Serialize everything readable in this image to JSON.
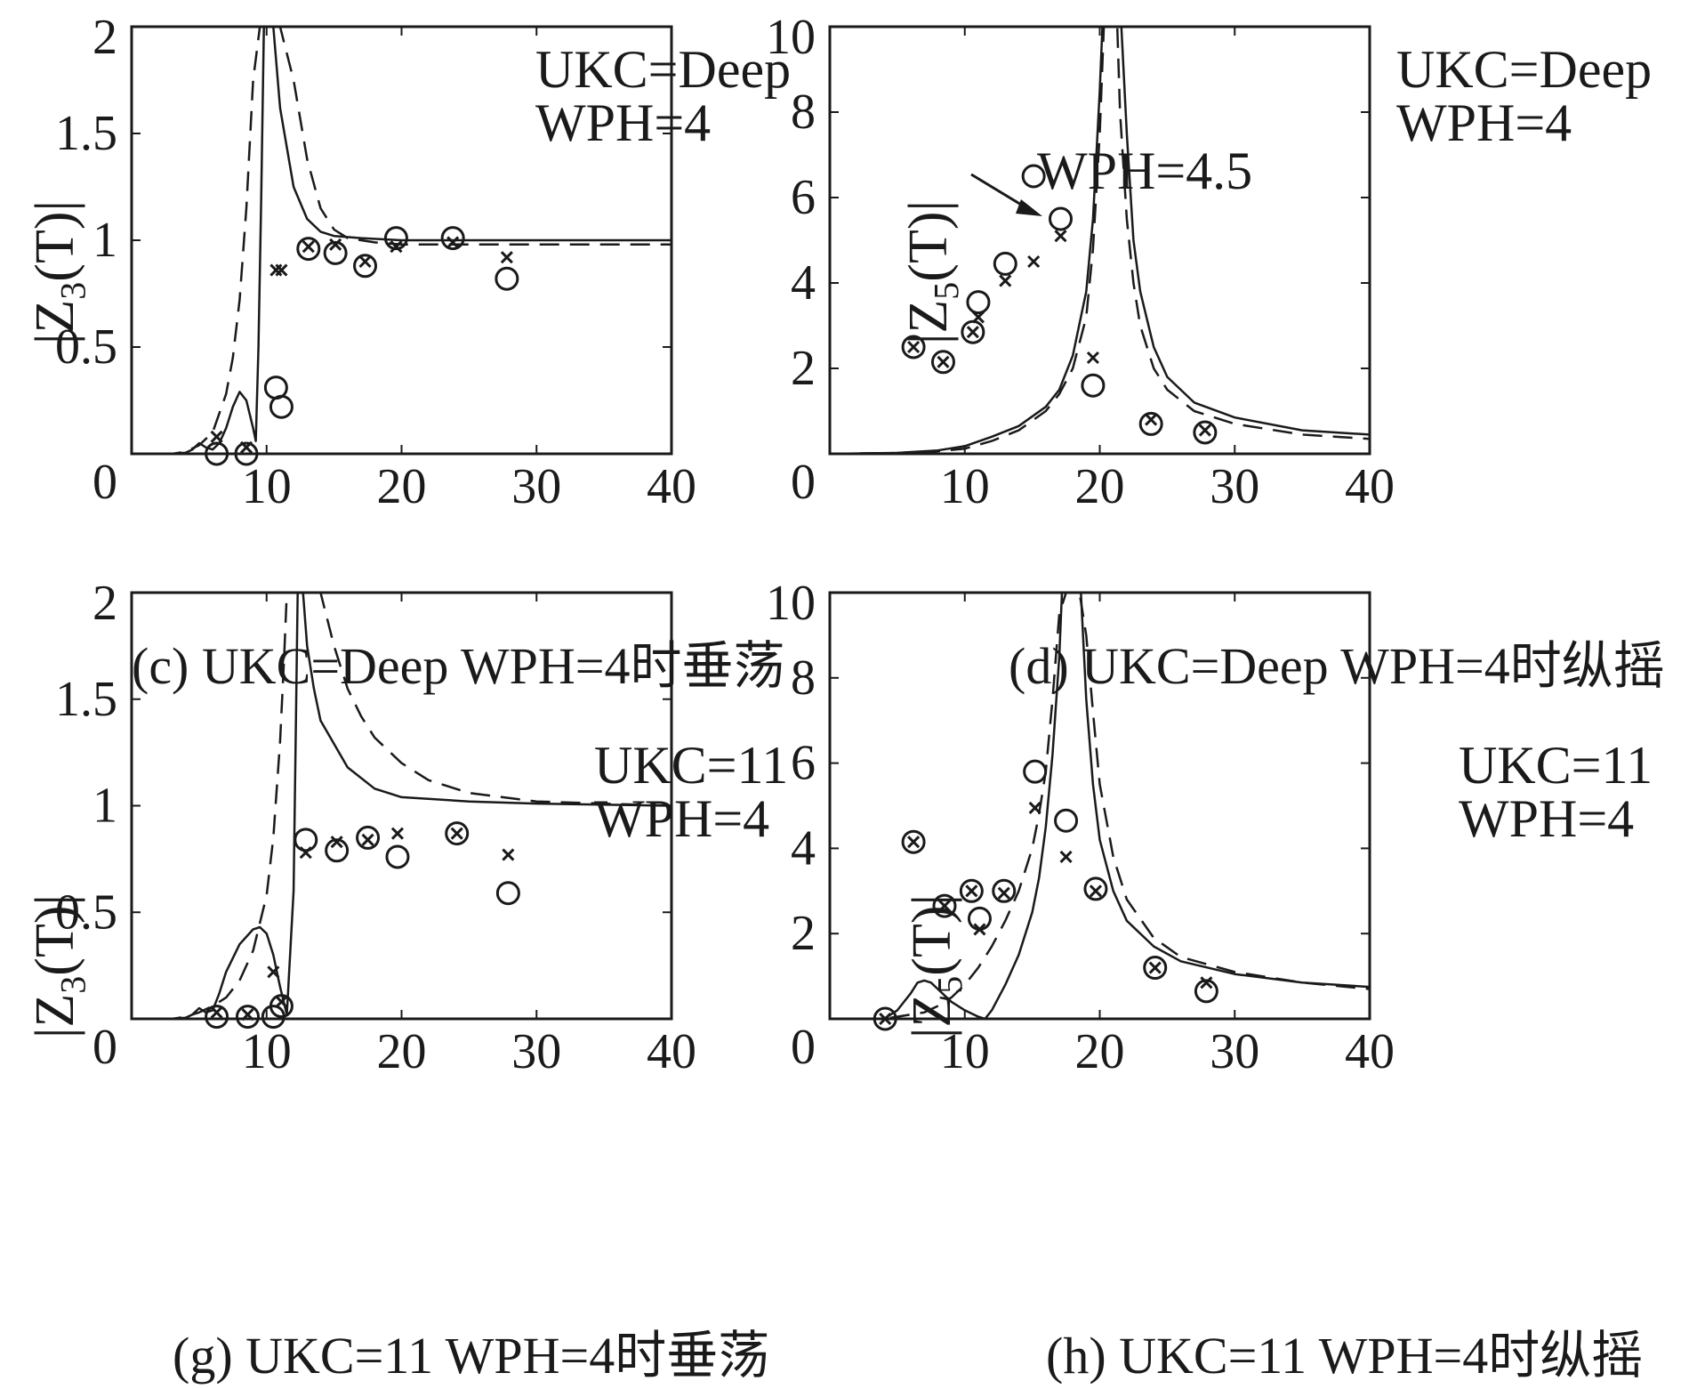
{
  "chart_data": [
    {
      "type": "line",
      "id": "c",
      "caption": "(c) UKC=Deep WPH=4时垂荡",
      "ylabel_main": "|Z",
      "ylabel_sub": "3",
      "ylabel_tail": "(T)|",
      "xlim": [
        0,
        40
      ],
      "ylim": [
        0,
        2
      ],
      "xticks": [
        0,
        10,
        20,
        30,
        40
      ],
      "yticks": [
        0,
        0.5,
        1,
        1.5,
        2
      ],
      "ytick_labels": [
        "0",
        "0.5",
        "1",
        "1.5",
        "2"
      ],
      "annotations": [
        "UKC=Deep",
        "WPH=4"
      ],
      "series": [
        {
          "style": "solid",
          "x": [
            0,
            3,
            4,
            4.5,
            5,
            5.5,
            6,
            6.5,
            7,
            7.5,
            8,
            8.5,
            9,
            9.2,
            9.4,
            9.6,
            9.8,
            10,
            10.2,
            10.5,
            11,
            12,
            13,
            14,
            15,
            17,
            20,
            25,
            30,
            40
          ],
          "y": [
            0,
            0,
            0.005,
            0.02,
            0.05,
            0.03,
            0.02,
            0.05,
            0.12,
            0.22,
            0.29,
            0.25,
            0.12,
            0.06,
            0.5,
            1.2,
            2,
            2,
            2,
            2,
            1.62,
            1.25,
            1.1,
            1.04,
            1.02,
            1.01,
            1.0,
            1.0,
            1.0,
            1.0
          ]
        },
        {
          "style": "dashed",
          "x": [
            0,
            3,
            4,
            5,
            6,
            7,
            7.5,
            8,
            8.5,
            9,
            9.5,
            10,
            10.5,
            11,
            12,
            13,
            14,
            15,
            16,
            18,
            20,
            25,
            30,
            40
          ],
          "y": [
            0,
            0,
            0.01,
            0.04,
            0.1,
            0.28,
            0.45,
            0.72,
            1.15,
            1.75,
            2,
            2,
            2,
            2,
            1.75,
            1.38,
            1.15,
            1.05,
            1.01,
            0.99,
            0.98,
            0.98,
            0.98,
            0.98
          ]
        }
      ],
      "markers_o": {
        "x": [
          6.3,
          8.5,
          10.7,
          11.1,
          13.1,
          15.1,
          17.3,
          19.6,
          23.8,
          27.8
        ],
        "y": [
          0,
          0,
          0.31,
          0.22,
          0.96,
          0.94,
          0.88,
          1.01,
          1.01,
          0.82
        ]
      },
      "markers_x": {
        "x": [
          6.3,
          8.5,
          10.7,
          11.1,
          13.1,
          15.1,
          17.3,
          19.6,
          23.8,
          27.8
        ],
        "y": [
          0.08,
          0.03,
          0.86,
          0.86,
          0.97,
          0.98,
          0.9,
          0.97,
          0.99,
          0.92
        ]
      }
    },
    {
      "type": "line",
      "id": "d",
      "caption": "(d) UKC=Deep WPH=4时纵摇",
      "ylabel_main": "|Z",
      "ylabel_sub": "5",
      "ylabel_tail": "(T)|",
      "xlim": [
        0,
        40
      ],
      "ylim": [
        0,
        10
      ],
      "xticks": [
        0,
        10,
        20,
        30,
        40
      ],
      "yticks": [
        0,
        2,
        4,
        6,
        8,
        10
      ],
      "ytick_labels": [
        "0",
        "2",
        "4",
        "6",
        "8",
        "10"
      ],
      "annotations": [
        "UKC=Deep",
        "WPH=4"
      ],
      "arrow_label": "WPH=4.5",
      "series": [
        {
          "style": "solid",
          "x": [
            0,
            5,
            8,
            10,
            12,
            14,
            16,
            17,
            18,
            19,
            19.5,
            20,
            20.2,
            20.5,
            20.8,
            21.2,
            21.6,
            22,
            22.5,
            23,
            24,
            25,
            27,
            30,
            35,
            40
          ],
          "y": [
            0,
            0.02,
            0.08,
            0.18,
            0.4,
            0.65,
            1.1,
            1.5,
            2.3,
            3.8,
            5.5,
            8.5,
            10,
            10,
            10,
            10,
            10,
            7.5,
            5,
            3.8,
            2.5,
            1.8,
            1.2,
            0.85,
            0.55,
            0.45
          ]
        },
        {
          "style": "dashed",
          "x": [
            0,
            5,
            8,
            10,
            12,
            14,
            16,
            17,
            18,
            19,
            19.5,
            20,
            20.3,
            20.6,
            21,
            21.3,
            21.5,
            22,
            22.5,
            23,
            24,
            25,
            27,
            30,
            35,
            40
          ],
          "y": [
            0,
            0.02,
            0.06,
            0.12,
            0.3,
            0.55,
            1.0,
            1.4,
            2.0,
            3.2,
            4.8,
            7.5,
            10,
            10,
            10,
            10,
            8,
            5.5,
            4,
            3,
            2,
            1.5,
            1,
            0.7,
            0.45,
            0.35
          ]
        }
      ],
      "markers_o": {
        "x": [
          6.2,
          8.4,
          10.6,
          11,
          13,
          15.1,
          17.1,
          19.5,
          23.8,
          27.8
        ],
        "y": [
          2.5,
          2.15,
          2.85,
          3.55,
          4.45,
          6.5,
          5.5,
          1.6,
          0.7,
          0.5
        ]
      },
      "markers_x": {
        "x": [
          6.2,
          8.4,
          10.6,
          11,
          13,
          15.1,
          17.1,
          19.5,
          23.8,
          27.8
        ],
        "y": [
          2.5,
          2.15,
          2.85,
          3.2,
          4.05,
          4.5,
          5.1,
          2.25,
          0.8,
          0.55
        ]
      }
    },
    {
      "type": "line",
      "id": "g",
      "caption": "(g) UKC=11 WPH=4时垂荡",
      "ylabel_main": "|Z",
      "ylabel_sub": "3",
      "ylabel_tail": "(T)|",
      "xlim": [
        0,
        40
      ],
      "ylim": [
        0,
        2
      ],
      "xticks": [
        0,
        10,
        20,
        30,
        40
      ],
      "yticks": [
        0,
        0.5,
        1,
        1.5,
        2
      ],
      "ytick_labels": [
        "0",
        "0.5",
        "1",
        "1.5",
        "2"
      ],
      "annotations": [
        "UKC=11",
        "WPH=4"
      ],
      "series": [
        {
          "style": "solid",
          "x": [
            0,
            3,
            4,
            4.5,
            5,
            5.5,
            6,
            6.5,
            7,
            8,
            9,
            9.5,
            10,
            10.5,
            11,
            11.5,
            12,
            12.3,
            12.5,
            12.7,
            13,
            13.5,
            14,
            16,
            18,
            20,
            25,
            30,
            40
          ],
          "y": [
            0,
            0,
            0.005,
            0.02,
            0.05,
            0.03,
            0.04,
            0.12,
            0.22,
            0.35,
            0.42,
            0.43,
            0.4,
            0.3,
            0.15,
            0.02,
            0.6,
            2,
            2,
            2,
            1.75,
            1.55,
            1.4,
            1.18,
            1.08,
            1.04,
            1.02,
            1.01,
            1.0
          ]
        },
        {
          "style": "dashed",
          "x": [
            0,
            3,
            4,
            5,
            6,
            7,
            8,
            9,
            10,
            10.5,
            11,
            11.3,
            11.5,
            11.8,
            12,
            13,
            14,
            15,
            16,
            17,
            18,
            20,
            22,
            25,
            30,
            40
          ],
          "y": [
            0,
            0,
            0.01,
            0.03,
            0.06,
            0.1,
            0.18,
            0.32,
            0.58,
            0.85,
            1.3,
            1.7,
            2,
            2,
            2,
            2,
            2,
            1.75,
            1.55,
            1.42,
            1.32,
            1.2,
            1.12,
            1.06,
            1.02,
            1.0
          ]
        }
      ],
      "markers_o": {
        "x": [
          6.3,
          8.6,
          10.5,
          11.1,
          12.9,
          15.2,
          17.5,
          19.7,
          24.1,
          27.9
        ],
        "y": [
          0.01,
          0.01,
          0.01,
          0.06,
          0.84,
          0.79,
          0.85,
          0.76,
          0.87,
          0.59
        ]
      },
      "markers_x": {
        "x": [
          6.3,
          8.6,
          10.5,
          11.1,
          12.9,
          15.2,
          17.5,
          19.7,
          24.1,
          27.9
        ],
        "y": [
          0.03,
          0.02,
          0.22,
          0.08,
          0.78,
          0.83,
          0.84,
          0.87,
          0.87,
          0.77
        ]
      }
    },
    {
      "type": "line",
      "id": "h",
      "caption": "(h) UKC=11 WPH=4时纵摇",
      "ylabel_main": "|Z",
      "ylabel_sub": "5",
      "ylabel_tail": "(T)|",
      "xlim": [
        0,
        40
      ],
      "ylim": [
        0,
        10
      ],
      "xticks": [
        0,
        10,
        20,
        30,
        40
      ],
      "yticks": [
        0,
        2,
        4,
        6,
        8,
        10
      ],
      "ytick_labels": [
        "0",
        "2",
        "4",
        "6",
        "8",
        "10"
      ],
      "annotations": [
        "UKC=11",
        "WPH=4"
      ],
      "series": [
        {
          "style": "solid",
          "x": [
            0,
            4,
            5,
            6,
            6.5,
            7,
            7.5,
            8,
            9,
            10,
            11,
            11.5,
            12,
            13,
            14,
            15,
            15.5,
            16,
            16.5,
            17,
            17.2,
            17.5,
            17.8,
            18,
            18.3,
            18.6,
            19,
            19.5,
            20,
            21,
            22,
            24,
            26,
            30,
            35,
            40
          ],
          "y": [
            0,
            0,
            0.2,
            0.6,
            0.85,
            0.9,
            0.85,
            0.7,
            0.4,
            0.2,
            0.05,
            0.0,
            0.2,
            0.8,
            1.5,
            2.5,
            3.3,
            4.5,
            6.2,
            8.5,
            10,
            10,
            10,
            10,
            10,
            10,
            7.5,
            5.5,
            4.2,
            3.0,
            2.3,
            1.7,
            1.35,
            1.05,
            0.85,
            0.75
          ]
        },
        {
          "style": "dashed",
          "x": [
            0,
            4,
            5,
            6,
            7,
            8,
            9,
            10,
            11,
            12,
            13,
            14,
            15,
            15.5,
            16,
            16.5,
            17,
            17.5,
            18,
            18.5,
            19,
            19.5,
            20,
            21,
            22,
            24,
            26,
            30,
            35,
            40
          ],
          "y": [
            0,
            0,
            0.05,
            0.1,
            0.15,
            0.3,
            0.5,
            0.8,
            1.2,
            1.7,
            2.3,
            3.0,
            4.0,
            4.8,
            5.8,
            7.5,
            9.5,
            10,
            10,
            10,
            9,
            7.2,
            5.5,
            3.8,
            2.8,
            1.9,
            1.45,
            1.1,
            0.85,
            0.7
          ]
        }
      ],
      "markers_o": {
        "x": [
          4.1,
          6.2,
          8.5,
          10.5,
          11.1,
          12.9,
          15.2,
          17.5,
          19.7,
          24.1,
          27.9
        ],
        "y": [
          0,
          4.15,
          2.65,
          3.0,
          2.35,
          3.0,
          5.8,
          4.65,
          3.05,
          1.2,
          0.65
        ]
      },
      "markers_x": {
        "x": [
          4.1,
          6.2,
          8.5,
          10.5,
          11.1,
          12.9,
          15.2,
          17.5,
          19.7,
          24.1,
          27.9
        ],
        "y": [
          0,
          4.15,
          2.65,
          3.0,
          2.1,
          2.95,
          4.95,
          3.8,
          3.0,
          1.2,
          0.85
        ]
      }
    }
  ]
}
